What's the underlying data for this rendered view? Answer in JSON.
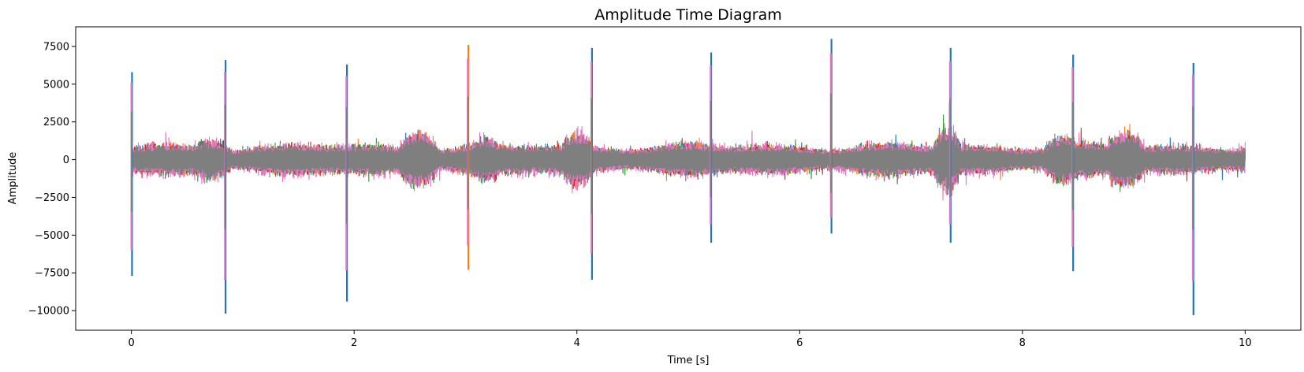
{
  "chart_data": {
    "type": "line",
    "title": "Amplitude Time Diagram",
    "xlabel": "Time [s]",
    "ylabel": "Amplitude",
    "xlim": [
      -0.5,
      10.5
    ],
    "ylim": [
      -11300,
      8800
    ],
    "x_ticks": [
      0,
      2,
      4,
      6,
      8,
      10
    ],
    "x_tick_labels": [
      "0",
      "2",
      "4",
      "6",
      "8",
      "10"
    ],
    "y_ticks": [
      7500,
      5000,
      2500,
      0,
      -2500,
      -5000,
      -7500,
      -10000
    ],
    "y_tick_labels": [
      "7500",
      "5000",
      "2500",
      "0",
      "−2500",
      "−5000",
      "−7500",
      "−10000"
    ],
    "grid": false,
    "series_colors": [
      "#1f77b4",
      "#ff7f0e",
      "#2ca02c",
      "#d62728",
      "#e377c2",
      "#7f7f7f"
    ],
    "duration_s": 10,
    "spike_times": [
      0.0,
      0.84,
      1.93,
      3.02,
      4.13,
      5.2,
      6.28,
      7.35,
      8.45,
      9.53
    ],
    "spike_peaks": [
      {
        "t": 0.0,
        "max": 5800,
        "min": -7700,
        "color": "#1f77b4"
      },
      {
        "t": 0.84,
        "max": 6600,
        "min": -10200,
        "color": "#1f77b4"
      },
      {
        "t": 1.93,
        "max": 6300,
        "min": -9400,
        "color": "#1f77b4"
      },
      {
        "t": 3.02,
        "max": 7600,
        "min": -7300,
        "color": "#ff7f0e"
      },
      {
        "t": 4.13,
        "max": 7400,
        "min": -7950,
        "color": "#1f77b4"
      },
      {
        "t": 5.2,
        "max": 7100,
        "min": -5500,
        "color": "#1f77b4"
      },
      {
        "t": 6.28,
        "max": 8000,
        "min": -4900,
        "color": "#1f77b4"
      },
      {
        "t": 7.35,
        "max": 7400,
        "min": -5500,
        "color": "#1f77b4"
      },
      {
        "t": 8.45,
        "max": 6950,
        "min": -7400,
        "color": "#1f77b4"
      },
      {
        "t": 9.53,
        "max": 6400,
        "min": -10300,
        "color": "#1f77b4"
      }
    ],
    "background_band": {
      "typical_max": 1500,
      "typical_min": -1500
    },
    "loud_segments": [
      {
        "start": 0.5,
        "end": 0.9,
        "amp": 1700
      },
      {
        "start": 2.4,
        "end": 2.75,
        "amp": 2400
      },
      {
        "start": 3.0,
        "end": 3.35,
        "amp": 1900
      },
      {
        "start": 3.85,
        "end": 4.15,
        "amp": 2300
      },
      {
        "start": 7.2,
        "end": 7.45,
        "amp": 2700
      },
      {
        "start": 8.2,
        "end": 8.55,
        "amp": 2100
      },
      {
        "start": 8.75,
        "end": 9.1,
        "amp": 2500
      }
    ]
  }
}
